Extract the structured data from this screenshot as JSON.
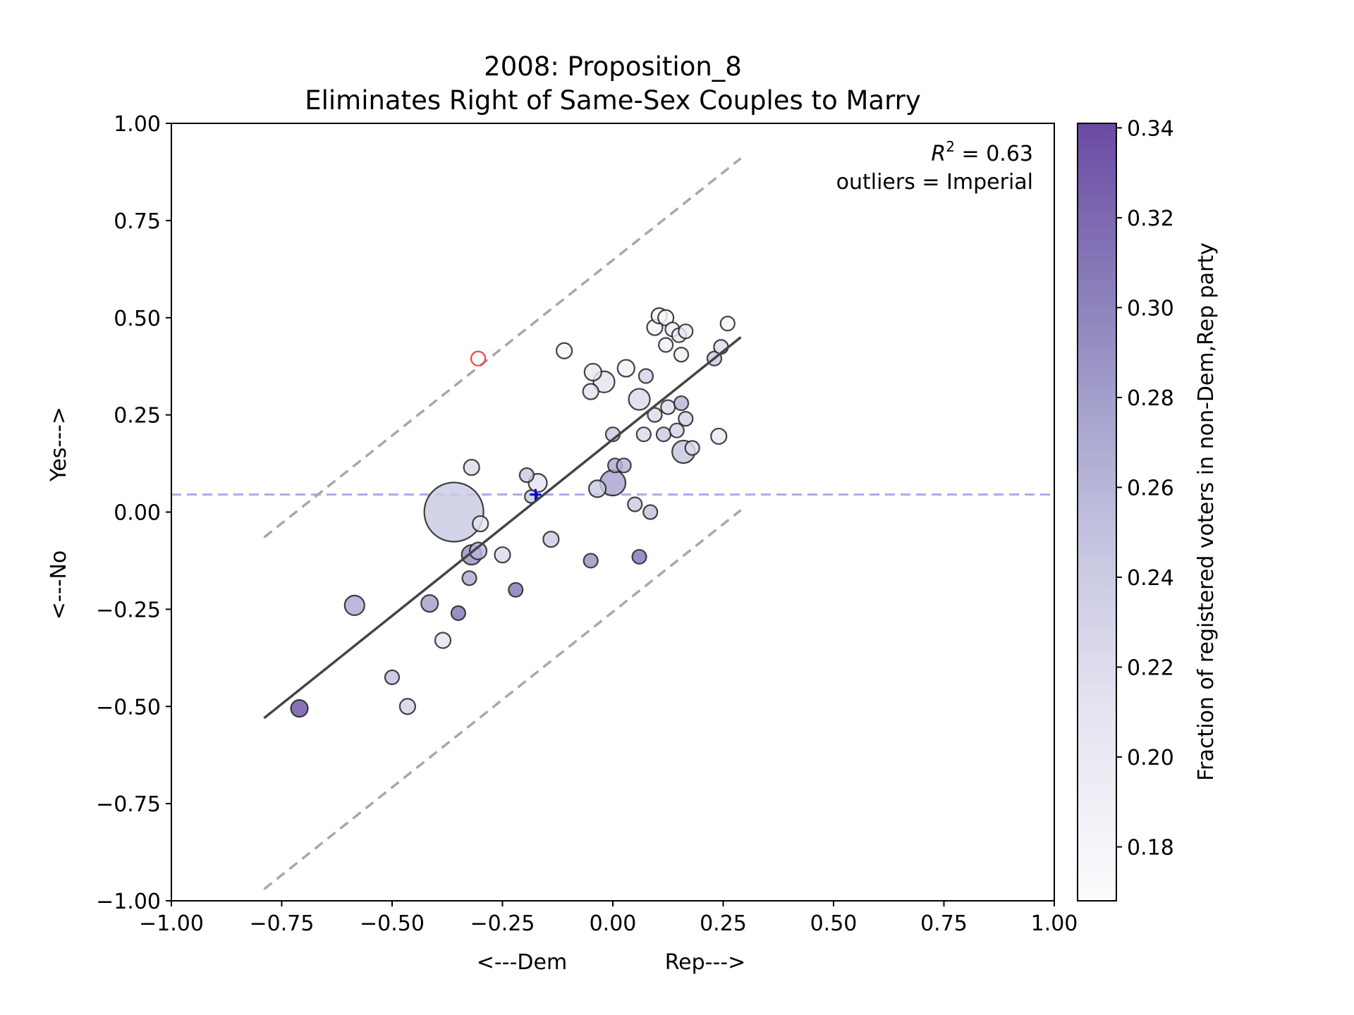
{
  "chart_data": {
    "type": "scatter",
    "title": "2008: Proposition_8",
    "subtitle": "Eliminates Right of Same-Sex Couples to Marry",
    "xlabel_left": "<---Dem",
    "xlabel_right": "Rep--->",
    "ylabel_bottom": "<---No",
    "ylabel_top": "Yes--->",
    "xlim": [
      -1.0,
      1.0
    ],
    "ylim": [
      -1.0,
      1.0
    ],
    "xticks": [
      -1.0,
      -0.75,
      -0.5,
      -0.25,
      0.0,
      0.25,
      0.5,
      0.75,
      1.0
    ],
    "yticks": [
      -1.0,
      -0.75,
      -0.5,
      -0.25,
      0.0,
      0.25,
      0.5,
      0.75,
      1.0
    ],
    "xtick_labels": [
      "−1.00",
      "−0.75",
      "−0.50",
      "−0.25",
      "0.00",
      "0.25",
      "0.50",
      "0.75",
      "1.00"
    ],
    "ytick_labels": [
      "−1.00",
      "−0.75",
      "−0.50",
      "−0.25",
      "0.00",
      "0.25",
      "0.50",
      "0.75",
      "1.00"
    ],
    "grid": false,
    "annotation_r2_prefix": "R",
    "annotation_r2_exp": "2",
    "annotation_r2_value": " = 0.63",
    "annotation_outliers": "outliers = Imperial",
    "regression_line": {
      "x": [
        -0.79,
        0.29
      ],
      "y": [
        -0.53,
        0.45
      ],
      "color": "#444444"
    },
    "band_upper": {
      "x": [
        -0.79,
        0.29
      ],
      "y": [
        -0.065,
        0.91
      ],
      "color": "#a8a8a8"
    },
    "band_lower": {
      "x": [
        -0.79,
        0.29
      ],
      "y": [
        -0.97,
        0.005
      ],
      "color": "#a8a8a8"
    },
    "hline": {
      "y": 0.045,
      "color": "#aaaaee"
    },
    "mean_marker": {
      "x": -0.175,
      "y": 0.045,
      "color": "#0000cc"
    },
    "colorbar": {
      "label": "Fraction of registered voters in non-Dem,Rep party",
      "vmin": 0.168,
      "vmax": 0.341,
      "ticks": [
        0.18,
        0.2,
        0.22,
        0.24,
        0.26,
        0.28,
        0.3,
        0.32,
        0.34
      ],
      "tick_labels": [
        "0.18",
        "0.20",
        "0.22",
        "0.24",
        "0.26",
        "0.28",
        "0.30",
        "0.32",
        "0.34"
      ],
      "colormap": "Purples"
    },
    "points": [
      {
        "x": -0.36,
        "y": 0.0,
        "r": 42,
        "c": 0.24
      },
      {
        "x": -0.71,
        "y": -0.505,
        "r": 12,
        "c": 0.335
      },
      {
        "x": -0.585,
        "y": -0.24,
        "r": 14,
        "c": 0.27
      },
      {
        "x": -0.5,
        "y": -0.425,
        "r": 10,
        "c": 0.25
      },
      {
        "x": -0.465,
        "y": -0.5,
        "r": 11,
        "c": 0.23
      },
      {
        "x": -0.415,
        "y": -0.235,
        "r": 12,
        "c": 0.28
      },
      {
        "x": -0.385,
        "y": -0.33,
        "r": 11,
        "c": 0.21
      },
      {
        "x": -0.35,
        "y": -0.26,
        "r": 10,
        "c": 0.31
      },
      {
        "x": -0.325,
        "y": -0.17,
        "r": 10,
        "c": 0.27
      },
      {
        "x": -0.32,
        "y": -0.11,
        "r": 14,
        "c": 0.29
      },
      {
        "x": -0.305,
        "y": -0.1,
        "r": 12,
        "c": 0.26
      },
      {
        "x": -0.3,
        "y": -0.03,
        "r": 11,
        "c": 0.21
      },
      {
        "x": -0.32,
        "y": 0.115,
        "r": 11,
        "c": 0.22
      },
      {
        "x": -0.25,
        "y": -0.11,
        "r": 11,
        "c": 0.22
      },
      {
        "x": -0.22,
        "y": -0.2,
        "r": 10,
        "c": 0.31
      },
      {
        "x": -0.195,
        "y": 0.095,
        "r": 10,
        "c": 0.24
      },
      {
        "x": -0.17,
        "y": 0.075,
        "r": 13,
        "c": 0.21
      },
      {
        "x": -0.185,
        "y": 0.04,
        "r": 9,
        "c": 0.24
      },
      {
        "x": -0.14,
        "y": -0.07,
        "r": 11,
        "c": 0.24
      },
      {
        "x": -0.11,
        "y": 0.415,
        "r": 11,
        "c": 0.18
      },
      {
        "x": -0.045,
        "y": 0.36,
        "r": 12,
        "c": 0.2
      },
      {
        "x": -0.02,
        "y": 0.335,
        "r": 15,
        "c": 0.21
      },
      {
        "x": -0.05,
        "y": 0.31,
        "r": 11,
        "c": 0.21
      },
      {
        "x": -0.035,
        "y": 0.06,
        "r": 12,
        "c": 0.24
      },
      {
        "x": -0.05,
        "y": -0.125,
        "r": 10,
        "c": 0.29
      },
      {
        "x": 0.0,
        "y": 0.075,
        "r": 18,
        "c": 0.275
      },
      {
        "x": 0.0,
        "y": 0.2,
        "r": 10,
        "c": 0.24
      },
      {
        "x": 0.005,
        "y": 0.12,
        "r": 10,
        "c": 0.27
      },
      {
        "x": 0.025,
        "y": 0.12,
        "r": 10,
        "c": 0.26
      },
      {
        "x": 0.03,
        "y": 0.37,
        "r": 12,
        "c": 0.19
      },
      {
        "x": 0.05,
        "y": 0.02,
        "r": 10,
        "c": 0.24
      },
      {
        "x": 0.06,
        "y": 0.29,
        "r": 15,
        "c": 0.22
      },
      {
        "x": 0.06,
        "y": -0.115,
        "r": 10,
        "c": 0.31
      },
      {
        "x": 0.07,
        "y": 0.2,
        "r": 10,
        "c": 0.22
      },
      {
        "x": 0.075,
        "y": 0.35,
        "r": 10,
        "c": 0.23
      },
      {
        "x": 0.085,
        "y": 0.0,
        "r": 10,
        "c": 0.25
      },
      {
        "x": 0.095,
        "y": 0.475,
        "r": 11,
        "c": 0.18
      },
      {
        "x": 0.095,
        "y": 0.25,
        "r": 10,
        "c": 0.22
      },
      {
        "x": 0.105,
        "y": 0.505,
        "r": 11,
        "c": 0.18
      },
      {
        "x": 0.115,
        "y": 0.2,
        "r": 10,
        "c": 0.24
      },
      {
        "x": 0.12,
        "y": 0.43,
        "r": 10,
        "c": 0.19
      },
      {
        "x": 0.12,
        "y": 0.5,
        "r": 11,
        "c": 0.18
      },
      {
        "x": 0.125,
        "y": 0.27,
        "r": 10,
        "c": 0.22
      },
      {
        "x": 0.135,
        "y": 0.47,
        "r": 10,
        "c": 0.19
      },
      {
        "x": 0.145,
        "y": 0.21,
        "r": 10,
        "c": 0.23
      },
      {
        "x": 0.15,
        "y": 0.455,
        "r": 10,
        "c": 0.2
      },
      {
        "x": 0.155,
        "y": 0.28,
        "r": 10,
        "c": 0.26
      },
      {
        "x": 0.155,
        "y": 0.405,
        "r": 10,
        "c": 0.19
      },
      {
        "x": 0.165,
        "y": 0.24,
        "r": 10,
        "c": 0.23
      },
      {
        "x": 0.165,
        "y": 0.465,
        "r": 10,
        "c": 0.2
      },
      {
        "x": 0.16,
        "y": 0.155,
        "r": 16,
        "c": 0.245
      },
      {
        "x": 0.18,
        "y": 0.165,
        "r": 10,
        "c": 0.22
      },
      {
        "x": 0.23,
        "y": 0.395,
        "r": 10,
        "c": 0.24
      },
      {
        "x": 0.24,
        "y": 0.195,
        "r": 11,
        "c": 0.2
      },
      {
        "x": 0.245,
        "y": 0.425,
        "r": 10,
        "c": 0.22
      },
      {
        "x": 0.26,
        "y": 0.485,
        "r": 10,
        "c": 0.18
      }
    ],
    "outlier_points": [
      {
        "x": -0.305,
        "y": 0.395,
        "r": 10,
        "color": "#ee4444"
      }
    ]
  }
}
